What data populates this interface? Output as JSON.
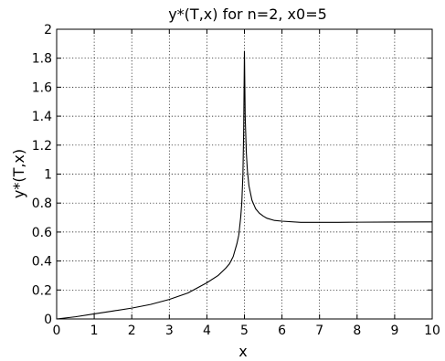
{
  "chart_data": {
    "type": "line",
    "title": "y*(T,x) for n=2, x0=5",
    "xlabel": "x",
    "ylabel": "y*(T,x)",
    "xlim": [
      0,
      10
    ],
    "ylim": [
      0,
      2
    ],
    "grid": true,
    "x_ticks": [
      "0",
      "1",
      "2",
      "3",
      "4",
      "5",
      "6",
      "7",
      "8",
      "9",
      "10"
    ],
    "y_ticks": [
      "0",
      "0.2",
      "0.4",
      "0.6",
      "0.8",
      "1",
      "1.2",
      "1.4",
      "1.6",
      "1.8",
      "2"
    ],
    "series": [
      {
        "x": [
          0,
          0.5,
          1,
          1.5,
          2,
          2.5,
          3,
          3.5,
          4,
          4.3,
          4.5,
          4.6,
          4.7,
          4.8,
          4.85,
          4.9,
          4.93,
          4.96,
          4.98,
          5.0,
          5.02,
          5.05,
          5.08,
          5.12,
          5.2,
          5.3,
          5.4,
          5.5,
          5.6,
          5.8,
          6,
          6.5,
          7,
          7.5,
          8,
          9,
          10
        ],
        "y": [
          0,
          0.015,
          0.035,
          0.055,
          0.075,
          0.1,
          0.135,
          0.18,
          0.25,
          0.3,
          0.35,
          0.38,
          0.43,
          0.52,
          0.58,
          0.7,
          0.8,
          1.0,
          1.3,
          1.85,
          1.4,
          1.15,
          1.02,
          0.92,
          0.82,
          0.76,
          0.73,
          0.71,
          0.695,
          0.68,
          0.675,
          0.667,
          0.667,
          0.667,
          0.668,
          0.669,
          0.67
        ]
      }
    ]
  }
}
